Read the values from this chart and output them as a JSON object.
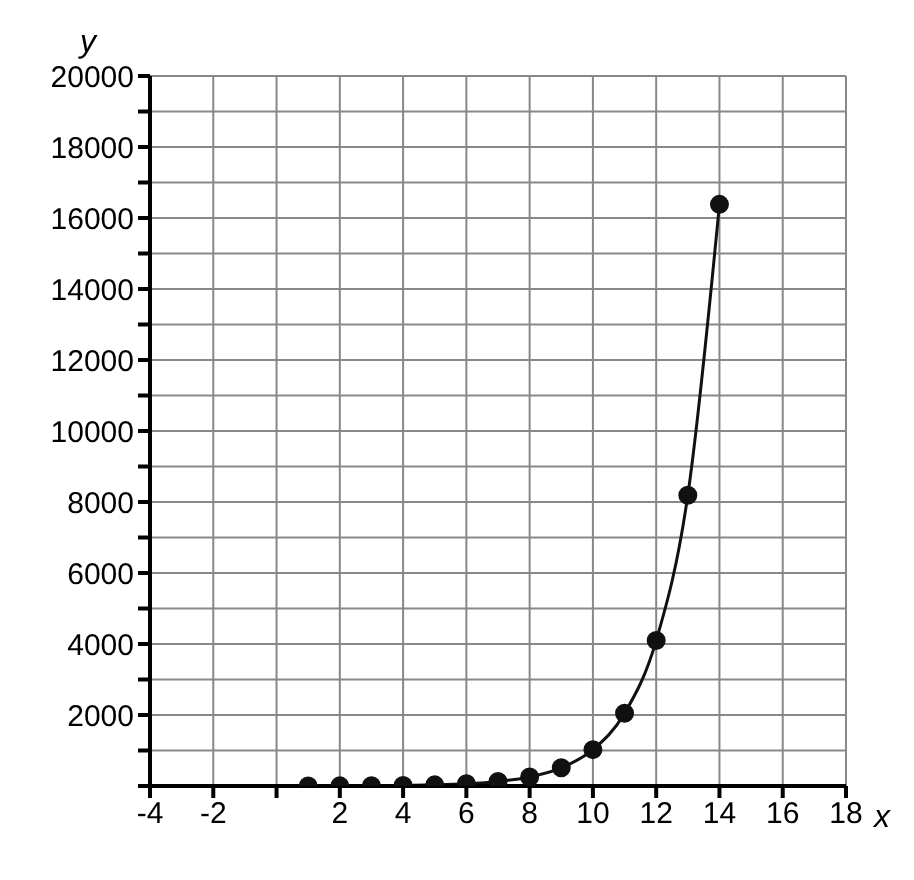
{
  "chart_data": {
    "type": "line",
    "xlabel": "x",
    "ylabel": "y",
    "x": [
      1,
      2,
      3,
      4,
      5,
      6,
      7,
      8,
      9,
      10,
      11,
      12,
      13,
      14
    ],
    "series": [
      {
        "color": "#111111",
        "values": [
          2,
          4,
          8,
          16,
          32,
          64,
          128,
          256,
          512,
          1024,
          2048,
          4096,
          8192,
          16384
        ]
      }
    ],
    "xlim": [
      -4,
      18
    ],
    "xticks": [
      -4,
      -2,
      {
        "value": 0,
        "label": null
      },
      2,
      4,
      6,
      8,
      10,
      12,
      14,
      16,
      18
    ],
    "ylim": [
      0,
      20000
    ],
    "yticks": [
      {
        "value": 0,
        "label": null
      },
      {
        "value": 1000,
        "label": null
      },
      2000,
      {
        "value": 3000,
        "label": null
      },
      4000,
      {
        "value": 5000,
        "label": null
      },
      6000,
      {
        "value": 7000,
        "label": null
      },
      8000,
      {
        "value": 9000,
        "label": null
      },
      10000,
      {
        "value": 11000,
        "label": null
      },
      12000,
      {
        "value": 13000,
        "label": null
      },
      14000,
      {
        "value": 15000,
        "label": null
      },
      16000,
      {
        "value": 17000,
        "label": null
      },
      18000,
      {
        "value": 19000,
        "label": null
      },
      20000
    ],
    "grid": true,
    "marker": "circle",
    "line_style": "solid",
    "legend": false
  }
}
